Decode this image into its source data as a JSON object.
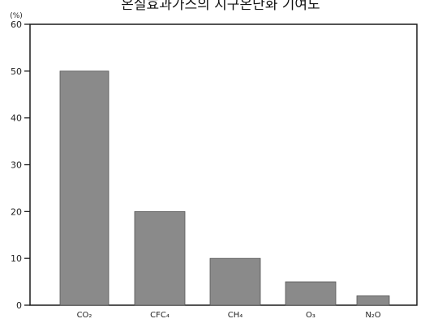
{
  "chart_data": {
    "type": "bar",
    "title": "온실효과가스의 지구온난화 기여도",
    "ylabel": "(%)",
    "xlabel": "",
    "categories": [
      "CO₂",
      "CFC₄",
      "CH₄",
      "O₃",
      "N₂O"
    ],
    "values": [
      50,
      20,
      10,
      5,
      2
    ],
    "ylim": [
      0,
      60
    ],
    "yticks": [
      0,
      10,
      20,
      30,
      40,
      50,
      60
    ],
    "grid": false,
    "bar_color": "#8a8a8a",
    "axis_color": "#1a1a1a"
  }
}
